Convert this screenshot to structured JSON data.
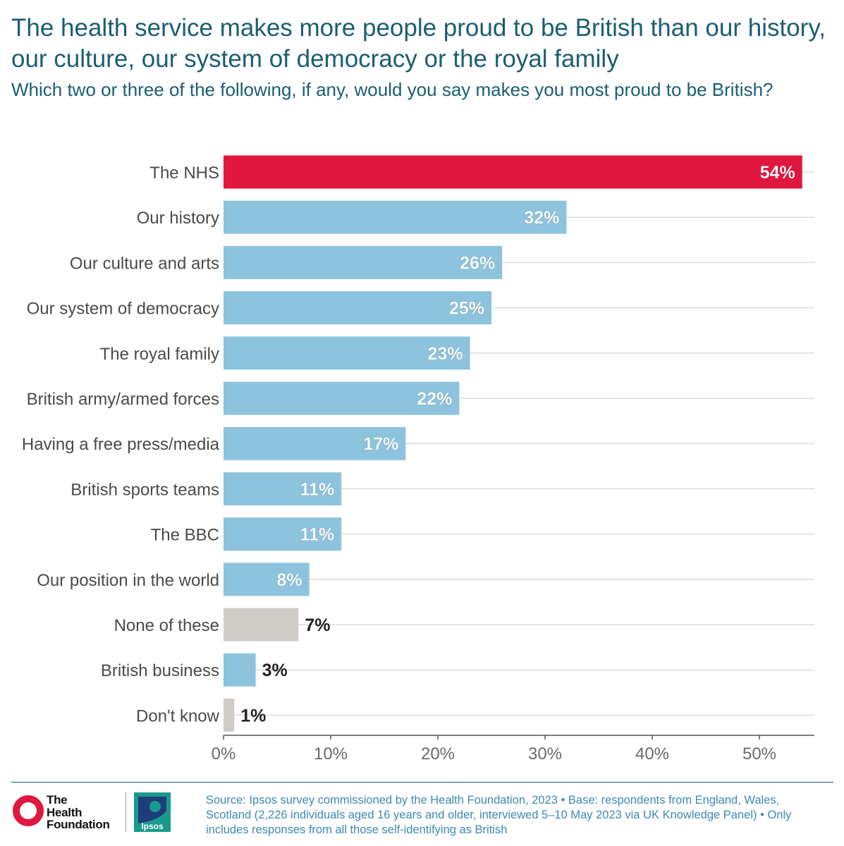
{
  "header": {
    "title": "The health service makes more people proud to be British than our history, our culture, our system of democracy or the royal family",
    "subtitle": "Which two or three of the following, if any, would you say makes you most proud to be British?"
  },
  "chart_data": {
    "type": "bar",
    "orientation": "horizontal",
    "categories": [
      "The NHS",
      "Our history",
      "Our culture and arts",
      "Our system of democracy",
      "The royal family",
      "British army/armed forces",
      "Having a free press/media",
      "British sports teams",
      "The BBC",
      "Our position in the world",
      "None of these",
      "British business",
      "Don't know"
    ],
    "values": [
      54,
      32,
      26,
      25,
      23,
      22,
      17,
      11,
      11,
      8,
      7,
      3,
      1
    ],
    "value_labels": [
      "54%",
      "32%",
      "26%",
      "25%",
      "23%",
      "22%",
      "17%",
      "11%",
      "11%",
      "8%",
      "7%",
      "3%",
      "1%"
    ],
    "bar_colors": [
      "#e0173f",
      "#8dc3dd",
      "#8dc3dd",
      "#8dc3dd",
      "#8dc3dd",
      "#8dc3dd",
      "#8dc3dd",
      "#8dc3dd",
      "#8dc3dd",
      "#8dc3dd",
      "#cfccc8",
      "#8dc3dd",
      "#cfccc8"
    ],
    "xlim": [
      0,
      55
    ],
    "xticks": [
      0,
      10,
      20,
      30,
      40,
      50
    ],
    "xtick_labels": [
      "0%",
      "10%",
      "20%",
      "30%",
      "40%",
      "50%"
    ],
    "grid": "horizontal",
    "colors": {
      "highlight": "#e0173f",
      "bar": "#8dc3dd",
      "neutral": "#cfccc8",
      "title": "#1b5e72",
      "source": "#3d8ab0"
    }
  },
  "footer": {
    "source": "Source: Ipsos survey commissioned by the Health Foundation, 2023 • Base: respondents from England, Wales, Scotland (2,226 individuals aged 16 years and older, interviewed 5–10 May 2023 via UK Knowledge Panel) • Only includes responses from all those self-identifying as British",
    "logo_health_foundation": "The Health Foundation",
    "logo_ipsos": "Ipsos"
  }
}
